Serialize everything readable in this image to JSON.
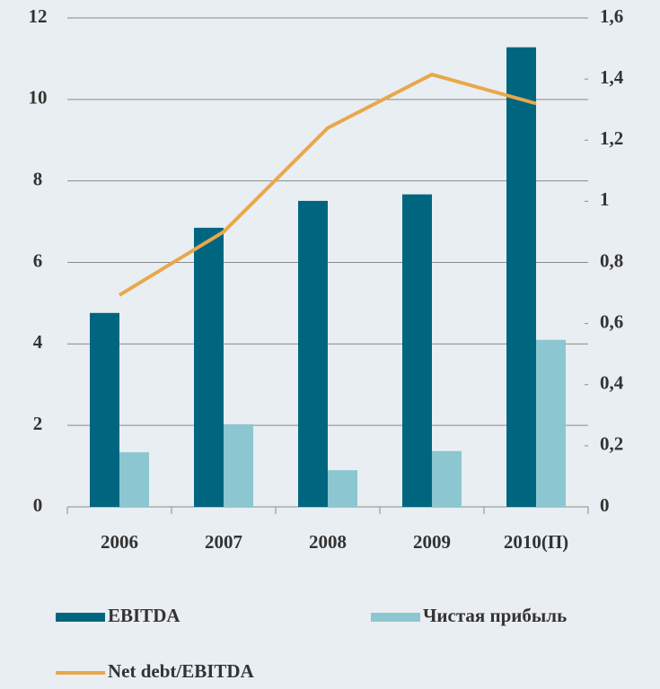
{
  "chart_data": {
    "type": "bar_line",
    "categories": [
      "2006",
      "2007",
      "2008",
      "2009",
      "2010(П)"
    ],
    "series": [
      {
        "name": "EBITDA",
        "color": "#006680",
        "values": [
          4.76,
          6.85,
          7.51,
          7.67,
          11.28
        ]
      },
      {
        "name": "Чистая прибыль",
        "color": "#8cc7d1",
        "values": [
          1.34,
          2.03,
          0.9,
          1.37,
          4.1
        ]
      },
      {
        "name": "Net debt/EBITDA",
        "color": "#e8a84a",
        "axis": "y2",
        "values": [
          0.693,
          0.9,
          1.24,
          1.415,
          1.32
        ]
      }
    ],
    "ylim": [
      0,
      12
    ],
    "yticks": [
      0,
      2,
      4,
      6,
      8,
      10,
      12
    ],
    "y2lim": [
      0,
      1.6
    ],
    "y2ticks": [
      0,
      {
        "value": 0.2,
        "label": "0,2"
      },
      {
        "value": 0.4,
        "label": "0,4"
      },
      {
        "value": 0.6,
        "label": "0,6"
      },
      {
        "value": 0.8,
        "label": "0,8"
      },
      1,
      {
        "value": 1.2,
        "label": "1,2"
      },
      {
        "value": 1.4,
        "label": "1,4"
      },
      {
        "value": 1.6,
        "label": "1,6"
      }
    ],
    "grid": true,
    "legend": "bottom"
  }
}
